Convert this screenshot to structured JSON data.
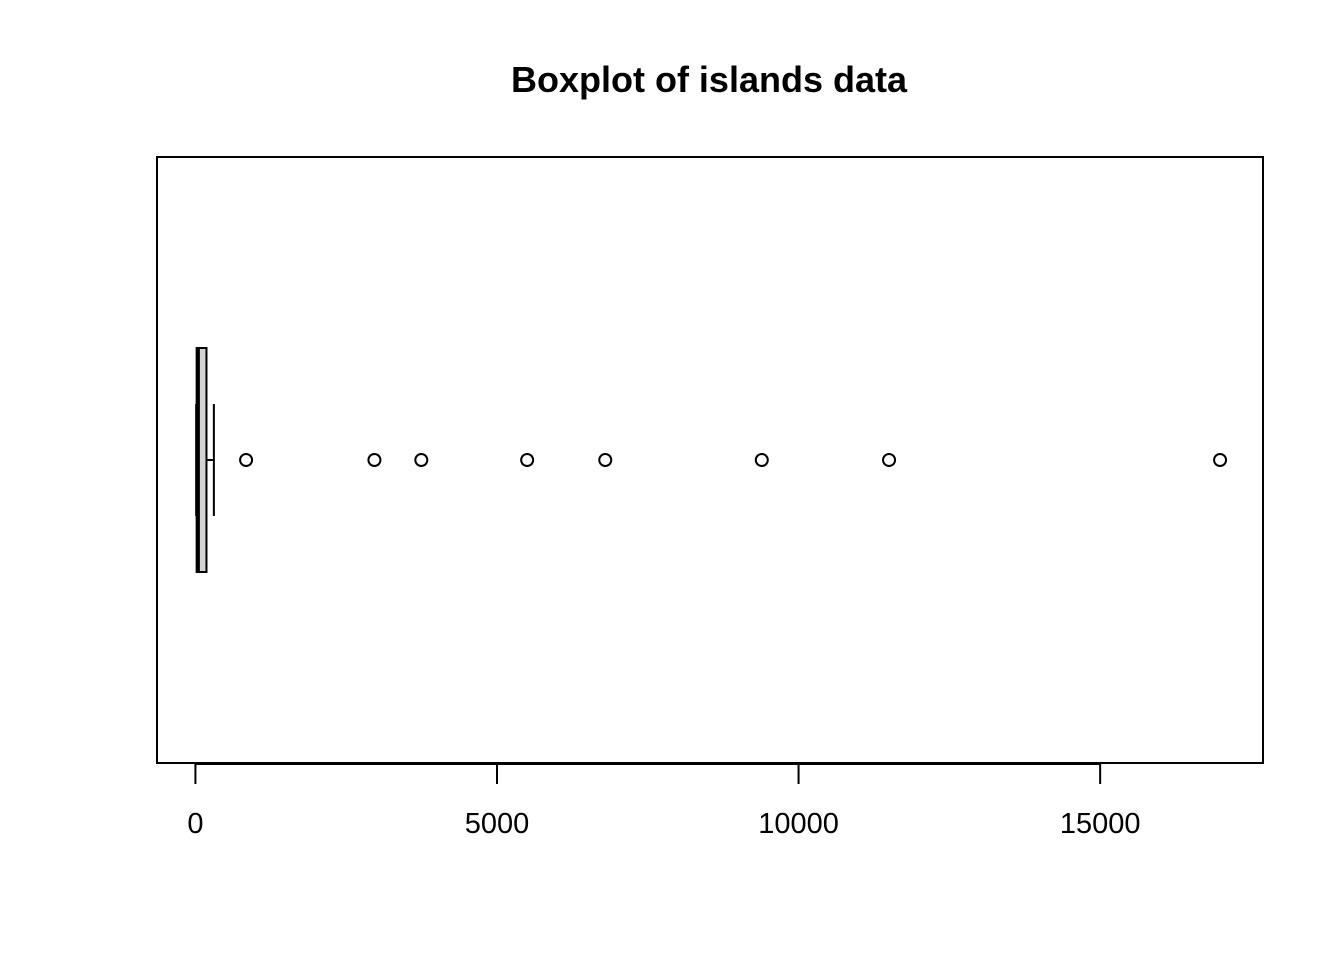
{
  "chart_data": {
    "type": "boxplot",
    "orientation": "horizontal",
    "title": "Boxplot of islands data",
    "xlabel": "",
    "ylabel": "",
    "xlim": [
      -637,
      17700
    ],
    "x_ticks": [
      0,
      5000,
      10000,
      15000
    ],
    "x_tick_labels": [
      "0",
      "5000",
      "10000",
      "15000"
    ],
    "grid": false,
    "legend": "none",
    "colors": {
      "box_fill": "#d3d3d3",
      "stroke": "#000000",
      "background": "#ffffff"
    },
    "box": {
      "min": 12,
      "q1": 20.5,
      "median": 41,
      "q3": 183.25,
      "whisker_low": 12,
      "whisker_high": 306
    },
    "outliers": [
      840,
      2968,
      3745,
      5500,
      6795,
      9390,
      11500,
      16988
    ]
  }
}
